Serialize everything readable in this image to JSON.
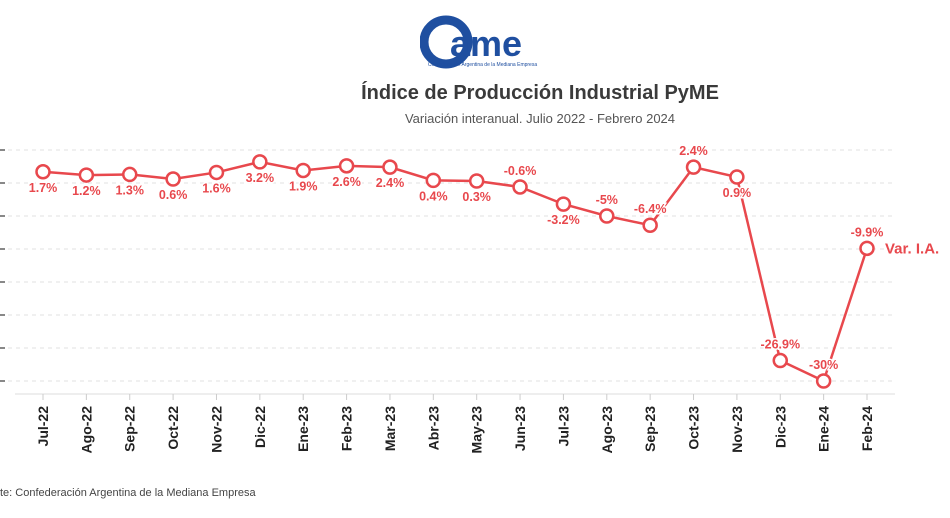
{
  "logo": {
    "text": "came",
    "tagline": "Confederación Argentina de la Mediana Empresa"
  },
  "source": "te: Confederación Argentina de la Mediana Empresa",
  "chart_data": {
    "type": "line",
    "title": "Índice de Producción Industrial PyME",
    "subtitle": "Variación interanual. Julio 2022 - Febrero 2024",
    "categories": [
      "Jul-22",
      "Ago-22",
      "Sep-22",
      "Oct-22",
      "Nov-22",
      "Dic-22",
      "Ene-23",
      "Feb-23",
      "Mar-23",
      "Abr-23",
      "May-23",
      "Jun-23",
      "Jul-23",
      "Ago-23",
      "Sep-23",
      "Oct-23",
      "Nov-23",
      "Dic-23",
      "Ene-24",
      "Feb-24"
    ],
    "series": [
      {
        "name": "Var. I.A.",
        "values": [
          1.7,
          1.2,
          1.3,
          0.6,
          1.6,
          3.2,
          1.9,
          2.6,
          2.4,
          0.4,
          0.3,
          -0.6,
          -3.2,
          -5,
          -6.4,
          2.4,
          0.9,
          -26.9,
          -30,
          -9.9
        ],
        "labels": [
          "1.7%",
          "1.2%",
          "1.3%",
          "0.6%",
          "1.6%",
          "3.2%",
          "1.9%",
          "2.6%",
          "2.4%",
          "0.4%",
          "0.3%",
          "-0.6%",
          "-3.2%",
          "-5%",
          "-6.4%",
          "2.4%",
          "0.9%",
          "-26.9%",
          "-30%",
          "-9.9%"
        ],
        "color": "#e8484d"
      }
    ],
    "ylim": [
      -30,
      5
    ],
    "yticks": [
      5,
      0,
      -5,
      -10,
      -15,
      -20,
      -25,
      -30
    ],
    "grid": true,
    "legend": "right-end label"
  }
}
